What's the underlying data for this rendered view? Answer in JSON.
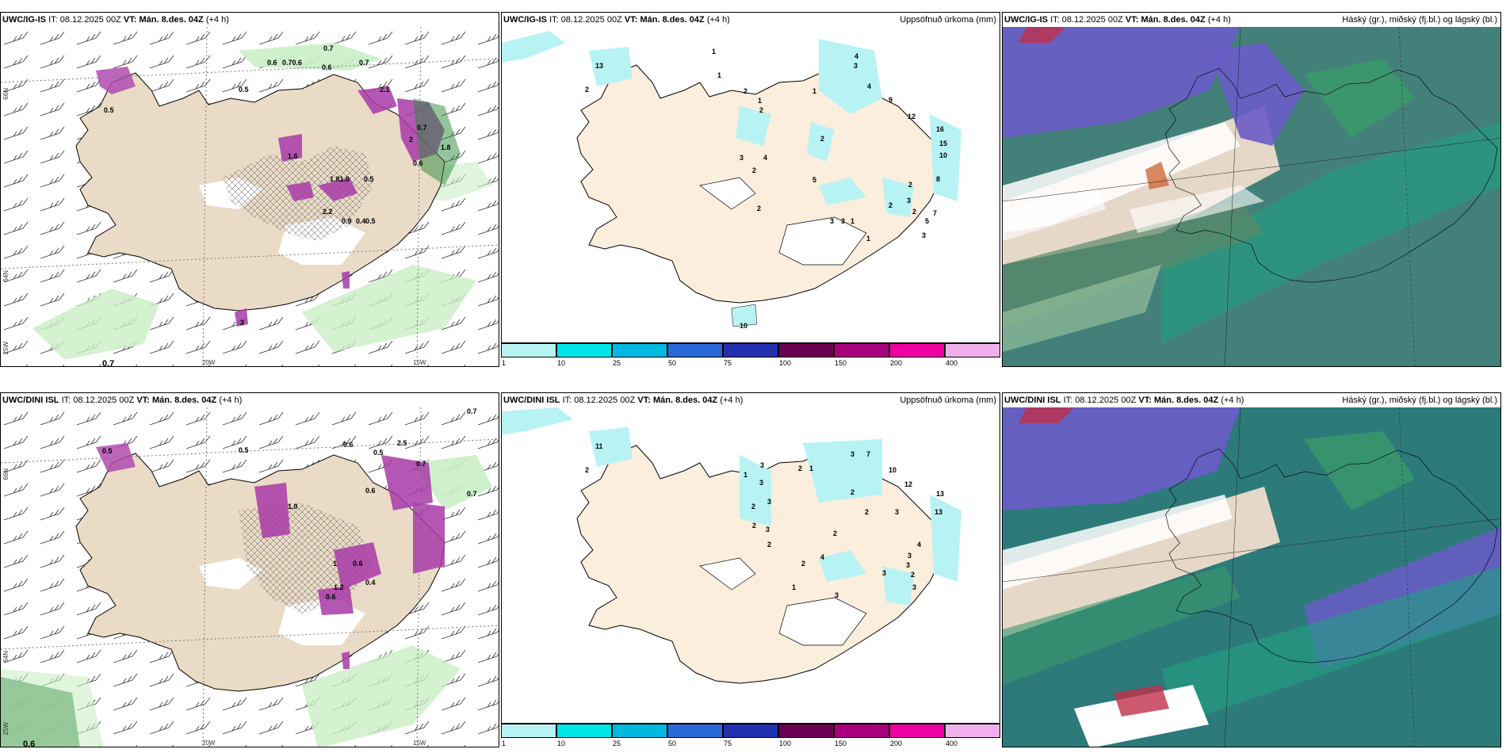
{
  "colors": {
    "land": "#eadbc6",
    "precip_land": "#fbeedd",
    "snow": "#ffffff",
    "legend": [
      "#b8f3f4",
      "#00e5e8",
      "#00b9e0",
      "#2a6ad8",
      "#2231b0",
      "#6a0050",
      "#a8007c",
      "#ee00a0",
      "#f0b0ee"
    ]
  },
  "rows": [
    {
      "model": "UWC/IG-IS",
      "it_label": "IT:",
      "it_value": "08.12.2025 00Z",
      "vt_label": "VT:",
      "vt_value": "Mán. 8.des. 04Z",
      "lead": "(+4 h)",
      "panel2_title": "Uppsöfnuð úrkoma (mm)",
      "panel3_title": "Háský (gr.), miðský (fj.bl.) og lágský (bl.)",
      "coords": {
        "lat1": "66N",
        "lat2": "64N",
        "lon1": "20W",
        "lon2": "15W",
        "lon3": "25W"
      },
      "wind_values": [
        "0.7",
        "0.6",
        "0.70.6",
        "0.6",
        "0.7",
        "0.5",
        "2.1",
        "0.5",
        "1.6",
        "1.81.0",
        "0.5",
        "2.2",
        "0.9",
        "0.4",
        "0.5",
        "0.7",
        "0.6",
        "3",
        "1.8",
        "2",
        "0.7"
      ],
      "precip_values": [
        "13",
        "2",
        "1",
        "4",
        "3",
        "4",
        "9",
        "12",
        "16",
        "15",
        "10",
        "8",
        "1",
        "2",
        "1",
        "1",
        "2",
        "2",
        "3",
        "4",
        "2",
        "5",
        "3",
        "3",
        "1",
        "2",
        "2",
        "3",
        "2",
        "7",
        "5",
        "3",
        "1",
        "10",
        "2"
      ]
    },
    {
      "model": "UWC/DINI ISL",
      "it_label": "IT:",
      "it_value": "08.12.2025 00Z",
      "vt_label": "VT:",
      "vt_value": "Mán. 8.des. 04Z",
      "lead": "(+4 h)",
      "panel2_title": "Uppsöfnuð úrkoma (mm)",
      "panel3_title": "Háský (gr.), miðský (fj.bl.) og lágský (bl.)",
      "coords": {
        "lat1": "66N",
        "lat2": "64N",
        "lon1": "20W",
        "lon2": "15W",
        "lon3": "25W"
      },
      "wind_values": [
        "0.7",
        "0.5",
        "0.6",
        "0.5",
        "0.6",
        "0.4",
        "1.0",
        "0.5",
        "1",
        "0.6",
        "0.7",
        "0.6",
        "0.7",
        "0.6",
        "2.5",
        "1.2"
      ],
      "precip_values": [
        "11",
        "2",
        "3",
        "7",
        "10",
        "12",
        "13",
        "13",
        "1",
        "3",
        "3",
        "3",
        "2",
        "2",
        "3",
        "2",
        "1",
        "2",
        "4",
        "2",
        "2",
        "3",
        "3",
        "4",
        "3",
        "2",
        "2",
        "3",
        "3",
        "1",
        "3",
        "2"
      ]
    }
  ],
  "legend": {
    "ticks": [
      "1",
      "10",
      "25",
      "50",
      "75",
      "100",
      "150",
      "200",
      "400"
    ]
  }
}
